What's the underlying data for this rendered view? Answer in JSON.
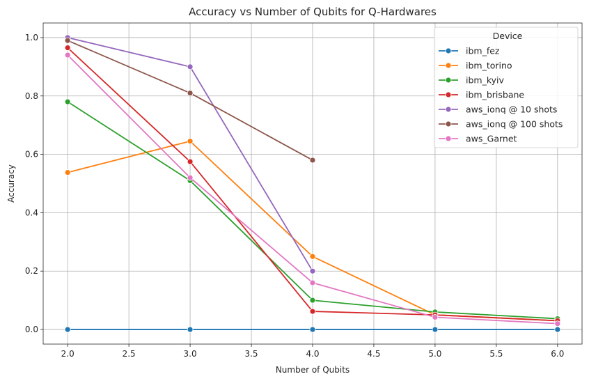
{
  "chart_data": {
    "type": "line",
    "title": "Accuracy vs Number of Qubits for Q-Hardwares",
    "xlabel": "Number of Qubits",
    "ylabel": "Accuracy",
    "xlim": [
      1.8,
      6.2
    ],
    "ylim": [
      -0.05,
      1.05
    ],
    "xticks": [
      2.0,
      2.5,
      3.0,
      3.5,
      4.0,
      4.5,
      5.0,
      5.5,
      6.0
    ],
    "xtick_labels": [
      "2.0",
      "2.5",
      "3.0",
      "3.5",
      "4.0",
      "4.5",
      "5.0",
      "5.5",
      "6.0"
    ],
    "yticks": [
      0.0,
      0.2,
      0.4,
      0.6,
      0.8,
      1.0
    ],
    "ytick_labels": [
      "0.0",
      "0.2",
      "0.4",
      "0.6",
      "0.8",
      "1.0"
    ],
    "grid": true,
    "legend": {
      "title": "Device",
      "placement": "top-right"
    },
    "series": [
      {
        "name": "ibm_fez",
        "color": "#1f77b4",
        "x": [
          2,
          3,
          4,
          5,
          6
        ],
        "y": [
          0.0,
          0.0,
          0.0,
          0.0,
          0.0
        ]
      },
      {
        "name": "ibm_torino",
        "color": "#ff7f0e",
        "x": [
          2,
          3,
          4,
          5,
          6
        ],
        "y": [
          0.538,
          0.645,
          0.25,
          0.05,
          0.03
        ]
      },
      {
        "name": "ibm_kyiv",
        "color": "#2ca02c",
        "x": [
          2,
          3,
          4,
          5,
          6
        ],
        "y": [
          0.78,
          0.51,
          0.1,
          0.06,
          0.037
        ]
      },
      {
        "name": "ibm_brisbane",
        "color": "#d62728",
        "x": [
          2,
          3,
          4,
          5,
          6
        ],
        "y": [
          0.965,
          0.575,
          0.062,
          0.05,
          0.03
        ]
      },
      {
        "name": "aws_ionq @ 10 shots",
        "color": "#9467bd",
        "x": [
          2,
          3,
          4
        ],
        "y": [
          1.0,
          0.9,
          0.2
        ]
      },
      {
        "name": "aws_ionq @ 100 shots",
        "color": "#8c564b",
        "x": [
          2,
          3,
          4
        ],
        "y": [
          0.99,
          0.81,
          0.58
        ]
      },
      {
        "name": "aws_Garnet",
        "color": "#e377c2",
        "x": [
          2,
          3,
          4,
          5,
          6
        ],
        "y": [
          0.94,
          0.52,
          0.16,
          0.042,
          0.02
        ]
      }
    ]
  }
}
